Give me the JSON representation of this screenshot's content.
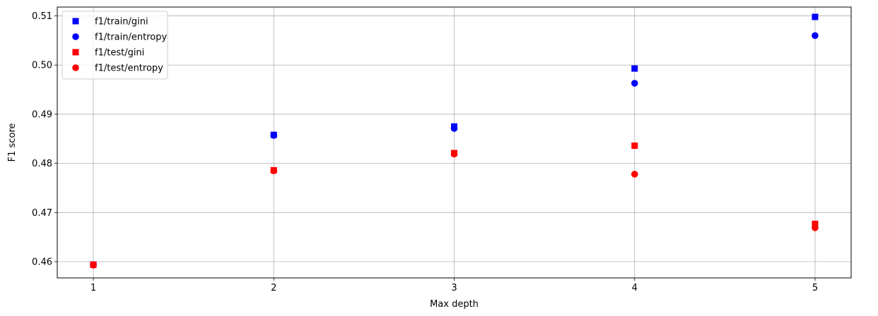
{
  "chart_data": {
    "type": "scatter",
    "title": "",
    "xlabel": "Max depth",
    "ylabel": "F1 score",
    "xlim": [
      0.8,
      5.2
    ],
    "ylim": [
      0.4567,
      0.5118
    ],
    "xticks": [
      1,
      2,
      3,
      4,
      5
    ],
    "yticks": [
      0.46,
      0.47,
      0.48,
      0.49,
      0.5,
      0.51
    ],
    "xtick_labels": [
      "1",
      "2",
      "3",
      "4",
      "5"
    ],
    "ytick_labels": [
      "0.46",
      "0.47",
      "0.48",
      "0.49",
      "0.50",
      "0.51"
    ],
    "grid": true,
    "legend_position": "top-left",
    "series": [
      {
        "name": "f1/train/gini",
        "marker": "square",
        "color": "#0000ff",
        "points": [
          {
            "x": 1,
            "y": 0.4594
          },
          {
            "x": 2,
            "y": 0.4858
          },
          {
            "x": 3,
            "y": 0.4875
          },
          {
            "x": 4,
            "y": 0.4993
          },
          {
            "x": 5,
            "y": 0.5098
          }
        ]
      },
      {
        "name": "f1/train/entropy",
        "marker": "circle",
        "color": "#0000ff",
        "points": [
          {
            "x": 1,
            "y": 0.4594
          },
          {
            "x": 2,
            "y": 0.4857
          },
          {
            "x": 3,
            "y": 0.4871
          },
          {
            "x": 4,
            "y": 0.4963
          },
          {
            "x": 5,
            "y": 0.506
          }
        ]
      },
      {
        "name": "f1/test/gini",
        "marker": "square",
        "color": "#ff0000",
        "points": [
          {
            "x": 1,
            "y": 0.4594
          },
          {
            "x": 2,
            "y": 0.4786
          },
          {
            "x": 3,
            "y": 0.4821
          },
          {
            "x": 4,
            "y": 0.4836
          },
          {
            "x": 5,
            "y": 0.4677
          }
        ]
      },
      {
        "name": "f1/test/entropy",
        "marker": "circle",
        "color": "#ff0000",
        "points": [
          {
            "x": 1,
            "y": 0.4593
          },
          {
            "x": 2,
            "y": 0.4785
          },
          {
            "x": 3,
            "y": 0.4819
          },
          {
            "x": 4,
            "y": 0.4778
          },
          {
            "x": 5,
            "y": 0.4669
          }
        ]
      }
    ]
  }
}
